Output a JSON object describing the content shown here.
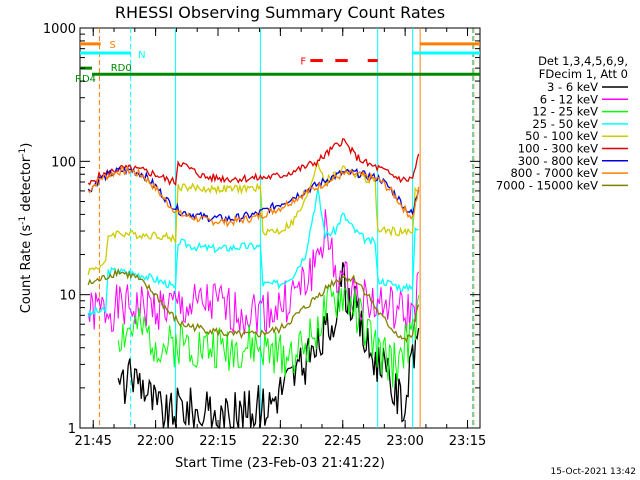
{
  "chart_data": {
    "type": "line",
    "title": "RHESSI Observing Summary Count Rates",
    "xlabel": "Start Time (23-Feb-03 21:41:22)",
    "ylabel_main": "Count Rate (s",
    "ylabel_sup1": "-1",
    "ylabel_mid": " detector",
    "ylabel_sup2": "-1",
    "ylabel_end": ")",
    "timestamp": "15-Oct-2021 13:42",
    "yscale": "log",
    "ylim": [
      1,
      1000
    ],
    "xlim_minutes": [
      21.697,
      23.3
    ],
    "x_ticks": [
      {
        "label": "21:45",
        "hour": 21.75
      },
      {
        "label": "22:00",
        "hour": 22.0
      },
      {
        "label": "22:15",
        "hour": 22.25
      },
      {
        "label": "22:30",
        "hour": 22.5
      },
      {
        "label": "22:45",
        "hour": 22.75
      },
      {
        "label": "23:00",
        "hour": 23.0
      },
      {
        "label": "23:15",
        "hour": 23.25
      }
    ],
    "y_ticks": [
      {
        "label": "1",
        "value": 1
      },
      {
        "label": "10",
        "value": 10
      },
      {
        "label": "100",
        "value": 100
      },
      {
        "label": "1000",
        "value": 1000
      }
    ],
    "legend": {
      "placement": "right",
      "header": [
        "Det 1,3,4,5,6,9,",
        "FDecim 1, Att 0"
      ],
      "entries": [
        {
          "name": "3 - 6 keV",
          "color": "#000000"
        },
        {
          "name": "6 - 12 keV",
          "color": "#ff00ff"
        },
        {
          "name": "12 - 25 keV",
          "color": "#00ff00"
        },
        {
          "name": "25 - 50 keV",
          "color": "#00ffff"
        },
        {
          "name": "50 - 100 keV",
          "color": "#cccc00"
        },
        {
          "name": "100 - 300 keV",
          "color": "#dd0000"
        },
        {
          "name": "300 - 800 keV",
          "color": "#0000dd"
        },
        {
          "name": "800 - 7000 keV",
          "color": "#ff8000"
        },
        {
          "name": "7000 - 15000 keV",
          "color": "#808000"
        }
      ]
    },
    "series": [
      {
        "color": "#000000",
        "points": [
          [
            21.85,
            2
          ],
          [
            21.93,
            2.5
          ],
          [
            22.0,
            1.5
          ],
          [
            22.05,
            1.2
          ],
          [
            22.1,
            1.5
          ],
          [
            22.18,
            1.3
          ],
          [
            22.25,
            1.2
          ],
          [
            22.35,
            1.3
          ],
          [
            22.45,
            1.5
          ],
          [
            22.5,
            2
          ],
          [
            22.55,
            2.5
          ],
          [
            22.6,
            3
          ],
          [
            22.65,
            4
          ],
          [
            22.7,
            6
          ],
          [
            22.75,
            12
          ],
          [
            22.8,
            8
          ],
          [
            22.85,
            4
          ],
          [
            22.9,
            3
          ],
          [
            22.95,
            2
          ],
          [
            23.0,
            1.5
          ],
          [
            23.03,
            3
          ],
          [
            23.06,
            8
          ]
        ]
      },
      {
        "color": "#ff00ff",
        "points": [
          [
            21.73,
            7
          ],
          [
            21.76,
            7.5
          ],
          [
            21.85,
            8
          ],
          [
            21.95,
            8
          ],
          [
            22.05,
            8
          ],
          [
            22.15,
            8
          ],
          [
            22.2,
            8.5
          ],
          [
            22.25,
            8.5
          ],
          [
            22.3,
            7.5
          ],
          [
            22.4,
            7.5
          ],
          [
            22.5,
            8
          ],
          [
            22.55,
            10
          ],
          [
            22.6,
            12
          ],
          [
            22.65,
            20
          ],
          [
            22.68,
            30
          ],
          [
            22.72,
            15
          ],
          [
            22.78,
            11
          ],
          [
            22.85,
            9
          ],
          [
            22.93,
            8
          ],
          [
            23.0,
            7
          ],
          [
            23.03,
            7.5
          ],
          [
            23.06,
            12
          ]
        ]
      },
      {
        "color": "#00ff00",
        "points": [
          [
            21.85,
            5
          ],
          [
            21.92,
            5.5
          ],
          [
            22.0,
            4.5
          ],
          [
            22.05,
            4
          ],
          [
            22.1,
            4.5
          ],
          [
            22.2,
            4
          ],
          [
            22.3,
            4
          ],
          [
            22.4,
            4
          ],
          [
            22.5,
            3.5
          ],
          [
            22.6,
            4
          ],
          [
            22.65,
            6
          ],
          [
            22.7,
            8
          ],
          [
            22.75,
            10
          ],
          [
            22.8,
            8
          ],
          [
            22.85,
            5
          ],
          [
            22.9,
            3.5
          ],
          [
            22.95,
            3
          ],
          [
            23.0,
            4
          ],
          [
            23.03,
            5
          ],
          [
            23.06,
            8
          ]
        ]
      },
      {
        "color": "#00ffff",
        "points": [
          [
            21.73,
            7
          ],
          [
            21.76,
            7.5
          ],
          [
            21.8,
            7.5
          ],
          [
            21.81,
            15
          ],
          [
            21.85,
            15
          ],
          [
            21.95,
            14
          ],
          [
            22.0,
            13
          ],
          [
            22.05,
            12
          ],
          [
            22.08,
            11
          ],
          [
            22.09,
            25
          ],
          [
            22.15,
            23
          ],
          [
            22.25,
            22
          ],
          [
            22.35,
            23
          ],
          [
            22.42,
            23
          ],
          [
            22.43,
            12
          ],
          [
            22.5,
            12
          ],
          [
            22.55,
            14
          ],
          [
            22.6,
            20
          ],
          [
            22.65,
            60
          ],
          [
            22.68,
            28
          ],
          [
            22.72,
            30
          ],
          [
            22.75,
            40
          ],
          [
            22.8,
            30
          ],
          [
            22.85,
            25
          ],
          [
            22.88,
            25
          ],
          [
            22.89,
            13
          ],
          [
            22.95,
            12
          ],
          [
            23.0,
            11
          ],
          [
            23.03,
            12
          ],
          [
            23.04,
            30
          ],
          [
            23.06,
            32
          ]
        ]
      },
      {
        "color": "#cccc00",
        "points": [
          [
            21.73,
            15
          ],
          [
            21.76,
            16
          ],
          [
            21.8,
            17
          ],
          [
            21.81,
            28
          ],
          [
            21.85,
            29
          ],
          [
            21.95,
            28
          ],
          [
            22.0,
            28
          ],
          [
            22.05,
            27
          ],
          [
            22.08,
            26
          ],
          [
            22.09,
            65
          ],
          [
            22.2,
            62
          ],
          [
            22.3,
            62
          ],
          [
            22.42,
            63
          ],
          [
            22.43,
            30
          ],
          [
            22.5,
            30
          ],
          [
            22.55,
            35
          ],
          [
            22.6,
            50
          ],
          [
            22.65,
            100
          ],
          [
            22.68,
            70
          ],
          [
            22.72,
            80
          ],
          [
            22.75,
            90
          ],
          [
            22.8,
            80
          ],
          [
            22.85,
            72
          ],
          [
            22.88,
            72
          ],
          [
            22.89,
            30
          ],
          [
            22.95,
            30
          ],
          [
            23.0,
            29
          ],
          [
            23.03,
            30
          ],
          [
            23.04,
            60
          ],
          [
            23.06,
            62
          ]
        ]
      },
      {
        "color": "#dd0000",
        "points": [
          [
            21.73,
            65
          ],
          [
            21.76,
            75
          ],
          [
            21.8,
            80
          ],
          [
            21.85,
            88
          ],
          [
            21.9,
            88
          ],
          [
            21.95,
            85
          ],
          [
            22.0,
            80
          ],
          [
            22.05,
            72
          ],
          [
            22.08,
            70
          ],
          [
            22.09,
            100
          ],
          [
            22.15,
            85
          ],
          [
            22.2,
            76
          ],
          [
            22.3,
            74
          ],
          [
            22.42,
            75
          ],
          [
            22.5,
            78
          ],
          [
            22.58,
            88
          ],
          [
            22.65,
            100
          ],
          [
            22.7,
            120
          ],
          [
            22.75,
            145
          ],
          [
            22.8,
            110
          ],
          [
            22.85,
            95
          ],
          [
            22.9,
            88
          ],
          [
            22.95,
            78
          ],
          [
            23.0,
            72
          ],
          [
            23.03,
            75
          ],
          [
            23.06,
            120
          ]
        ]
      },
      {
        "color": "#0000dd",
        "points": [
          [
            21.73,
            60
          ],
          [
            21.78,
            75
          ],
          [
            21.85,
            85
          ],
          [
            21.9,
            86
          ],
          [
            21.95,
            80
          ],
          [
            22.0,
            65
          ],
          [
            22.05,
            50
          ],
          [
            22.1,
            42
          ],
          [
            22.2,
            38
          ],
          [
            22.3,
            37
          ],
          [
            22.4,
            40
          ],
          [
            22.5,
            48
          ],
          [
            22.6,
            60
          ],
          [
            22.7,
            75
          ],
          [
            22.75,
            82
          ],
          [
            22.8,
            82
          ],
          [
            22.9,
            74
          ],
          [
            22.95,
            60
          ],
          [
            23.0,
            45
          ],
          [
            23.03,
            40
          ],
          [
            23.06,
            70
          ]
        ]
      },
      {
        "color": "#ff8000",
        "points": [
          [
            21.73,
            60
          ],
          [
            21.78,
            75
          ],
          [
            21.85,
            84
          ],
          [
            21.9,
            85
          ],
          [
            21.95,
            78
          ],
          [
            22.0,
            63
          ],
          [
            22.05,
            48
          ],
          [
            22.1,
            40
          ],
          [
            22.2,
            36
          ],
          [
            22.3,
            35
          ],
          [
            22.4,
            38
          ],
          [
            22.5,
            45
          ],
          [
            22.6,
            58
          ],
          [
            22.7,
            72
          ],
          [
            22.75,
            80
          ],
          [
            22.8,
            80
          ],
          [
            22.9,
            72
          ],
          [
            22.95,
            58
          ],
          [
            23.0,
            43
          ],
          [
            23.03,
            38
          ],
          [
            23.06,
            68
          ]
        ]
      },
      {
        "color": "#808000",
        "points": [
          [
            21.73,
            12
          ],
          [
            21.78,
            13
          ],
          [
            21.85,
            15
          ],
          [
            21.92,
            13.5
          ],
          [
            22.0,
            10
          ],
          [
            22.05,
            7.5
          ],
          [
            22.1,
            6
          ],
          [
            22.2,
            5.5
          ],
          [
            22.3,
            5
          ],
          [
            22.4,
            5
          ],
          [
            22.5,
            5.5
          ],
          [
            22.6,
            8
          ],
          [
            22.7,
            12
          ],
          [
            22.75,
            13.5
          ],
          [
            22.8,
            13
          ],
          [
            22.85,
            10
          ],
          [
            22.9,
            7
          ],
          [
            22.95,
            5.5
          ],
          [
            23.0,
            4.5
          ],
          [
            23.03,
            5
          ],
          [
            23.06,
            10
          ]
        ]
      }
    ],
    "status_bars": [
      {
        "label": "RD0",
        "color": "#008800",
        "value": 450,
        "segments": [
          [
            21.745,
            22.08
          ],
          [
            22.08,
            22.42
          ],
          [
            22.42,
            22.89
          ],
          [
            22.89,
            23.3
          ]
        ]
      },
      {
        "label": "RD4",
        "color": "#008800",
        "value": 500,
        "segments": [
          [
            21.697,
            21.745
          ]
        ]
      },
      {
        "label": "S",
        "color": "#ff8000",
        "value": 760,
        "segments": [
          [
            21.697,
            21.78
          ],
          [
            23.06,
            23.3
          ]
        ]
      },
      {
        "label": "N",
        "color": "#00ffff",
        "value": 650,
        "segments": [
          [
            21.697,
            21.9
          ],
          [
            23.03,
            23.3
          ]
        ]
      },
      {
        "label": "F",
        "color": "#ff0000",
        "value": 570,
        "segments": [
          [
            22.62,
            22.67
          ],
          [
            22.72,
            22.77
          ],
          [
            22.85,
            22.89
          ]
        ]
      }
    ],
    "vertical_lines": [
      {
        "hour": 21.775,
        "color": "#ff8000",
        "style": "dashed"
      },
      {
        "hour": 21.9,
        "color": "#00ffff",
        "style": "dashed"
      },
      {
        "hour": 22.08,
        "color": "#00ffff",
        "style": "solid"
      },
      {
        "hour": 22.42,
        "color": "#00ffff",
        "style": "solid"
      },
      {
        "hour": 22.89,
        "color": "#00ffff",
        "style": "solid"
      },
      {
        "hour": 23.03,
        "color": "#00ffff",
        "style": "solid"
      },
      {
        "hour": 23.06,
        "color": "#ff8000",
        "style": "solid"
      },
      {
        "hour": 23.27,
        "color": "#00ffff",
        "style": "dashed"
      },
      {
        "hour": 23.275,
        "color": "#ff8000",
        "style": "dashed"
      }
    ]
  }
}
